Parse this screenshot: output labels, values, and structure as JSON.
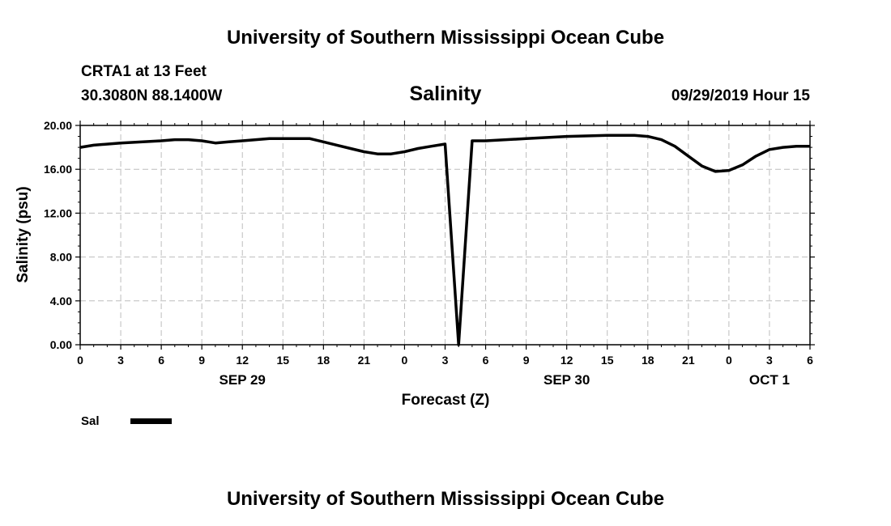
{
  "header": {
    "title": "University of Southern Mississippi Ocean Cube",
    "station": "CRTA1 at 13 Feet",
    "location": "30.3080N 88.1400W",
    "timestamp": "09/29/2019 Hour 15",
    "footer_title": "University of Southern Mississippi Ocean Cube"
  },
  "chart_data": {
    "type": "line",
    "title": "Salinity",
    "xlabel": "Forecast (Z)",
    "ylabel": "Salinity (psu)",
    "ylim": [
      0,
      20
    ],
    "xlim": [
      0,
      54
    ],
    "y_ticks": [
      "0.00",
      "4.00",
      "8.00",
      "12.00",
      "16.00",
      "20.00"
    ],
    "y_tick_values": [
      0,
      4,
      8,
      12,
      16,
      20
    ],
    "x_tick_labels": [
      "0",
      "3",
      "6",
      "9",
      "12",
      "15",
      "18",
      "21",
      "0",
      "3",
      "6",
      "9",
      "12",
      "15",
      "18",
      "21",
      "0",
      "3",
      "6"
    ],
    "x_tick_values": [
      0,
      3,
      6,
      9,
      12,
      15,
      18,
      21,
      24,
      27,
      30,
      33,
      36,
      39,
      42,
      45,
      48,
      51,
      54
    ],
    "day_labels": [
      {
        "label": "SEP 29",
        "x": 12
      },
      {
        "label": "SEP 30",
        "x": 36
      },
      {
        "label": "OCT 1",
        "x": 51
      }
    ],
    "grid": true,
    "legend_position": "bottom-left",
    "series": [
      {
        "name": "Sal",
        "color": "#000000",
        "x": [
          0,
          1,
          3,
          6,
          7,
          8,
          9,
          10,
          11,
          12,
          13,
          14,
          15,
          16,
          17,
          18,
          19,
          20,
          21,
          22,
          23,
          24,
          25,
          26,
          27,
          28,
          29,
          30,
          33,
          36,
          39,
          41,
          42,
          43,
          44,
          45,
          46,
          47,
          48,
          49,
          50,
          51,
          52,
          53,
          54
        ],
        "values": [
          18.0,
          18.2,
          18.4,
          18.6,
          18.7,
          18.7,
          18.6,
          18.4,
          18.5,
          18.6,
          18.7,
          18.8,
          18.8,
          18.8,
          18.8,
          18.5,
          18.2,
          17.9,
          17.6,
          17.4,
          17.4,
          17.6,
          17.9,
          18.1,
          18.3,
          0.0,
          18.6,
          18.6,
          18.8,
          19.0,
          19.1,
          19.1,
          19.0,
          18.7,
          18.1,
          17.2,
          16.3,
          15.8,
          15.9,
          16.4,
          17.2,
          17.8,
          18.0,
          18.1,
          18.1
        ]
      }
    ]
  }
}
